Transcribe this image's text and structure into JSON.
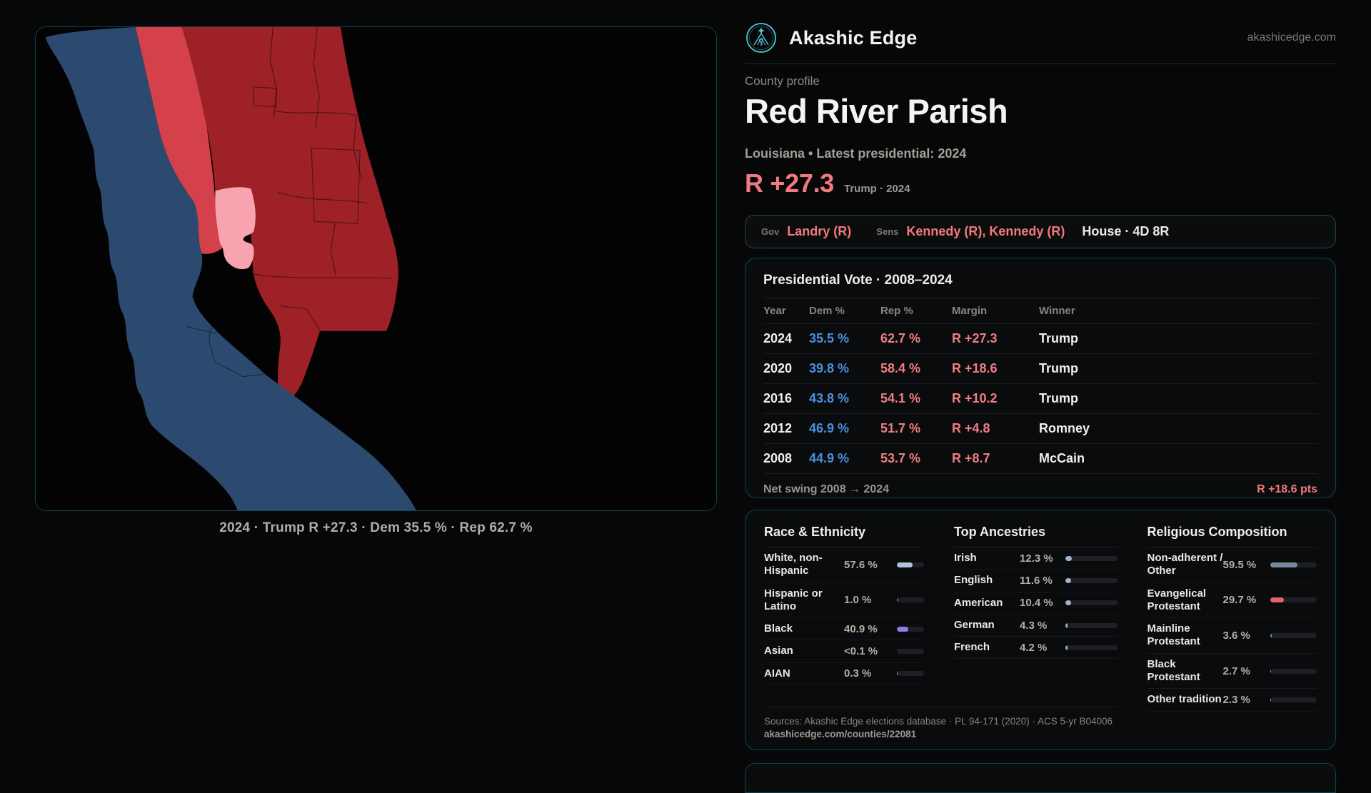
{
  "brand": {
    "name": "Akashic Edge",
    "url": "akashicedge.com",
    "accent": "#4fc8d8"
  },
  "profile": {
    "kicker": "County profile",
    "title": "Red River Parish",
    "subtitle": "Louisiana • Latest presidential: 2024",
    "margin_big": "R +27.3",
    "margin_context": "Trump · 2024"
  },
  "officials": {
    "gov_label": "Gov",
    "gov": "Landry (R)",
    "sens_label": "Sens",
    "sens": "Kennedy (R), Kennedy (R)",
    "house": "House · 4D 8R"
  },
  "map": {
    "caption": "2024 · Trump R +27.3 · Dem 35.5 % · Rep 62.7 %",
    "colors": {
      "dem": "#2c4a70",
      "rep_light": "#d4414b",
      "rep_dark": "#9e2127",
      "highlight": "#f8a3b0",
      "background": "#030304",
      "border_line": "#0d0708"
    }
  },
  "presidential": {
    "title": "Presidential Vote · 2008–2024",
    "columns": [
      "Year",
      "Dem %",
      "Rep %",
      "Margin",
      "Winner"
    ],
    "rows": [
      {
        "year": "2024",
        "dem": "35.5 %",
        "rep": "62.7 %",
        "margin": "R +27.3",
        "winner": "Trump"
      },
      {
        "year": "2020",
        "dem": "39.8 %",
        "rep": "58.4 %",
        "margin": "R +18.6",
        "winner": "Trump"
      },
      {
        "year": "2016",
        "dem": "43.8 %",
        "rep": "54.1 %",
        "margin": "R +10.2",
        "winner": "Trump"
      },
      {
        "year": "2012",
        "dem": "46.9 %",
        "rep": "51.7 %",
        "margin": "R +4.8",
        "winner": "Romney"
      },
      {
        "year": "2008",
        "dem": "44.9 %",
        "rep": "53.7 %",
        "margin": "R +8.7",
        "winner": "McCain"
      }
    ],
    "net_swing_label": "Net swing 2008 → 2024",
    "net_swing_value": "R +18.6 pts"
  },
  "race": {
    "title": "Race & Ethnicity",
    "rows": [
      {
        "label": "White, non-Hispanic",
        "value": "57.6 %",
        "pct": 57.6,
        "color": "#aec3da"
      },
      {
        "label": "Hispanic or Latino",
        "value": "1.0 %",
        "pct": 1.0,
        "color": "#aec3da"
      },
      {
        "label": "Black",
        "value": "40.9 %",
        "pct": 40.9,
        "color": "#8f7ee8"
      },
      {
        "label": "Asian",
        "value": "<0.1 %",
        "pct": 0.05,
        "color": "#aec3da"
      },
      {
        "label": "AIAN",
        "value": "0.3 %",
        "pct": 0.3,
        "color": "#aec3da"
      }
    ]
  },
  "ancestries": {
    "title": "Top Ancestries",
    "rows": [
      {
        "label": "Irish",
        "value": "12.3 %",
        "pct": 12.3,
        "color": "#9fb3c9"
      },
      {
        "label": "English",
        "value": "11.6 %",
        "pct": 11.6,
        "color": "#9fb3c9"
      },
      {
        "label": "American",
        "value": "10.4 %",
        "pct": 10.4,
        "color": "#9fb3c9"
      },
      {
        "label": "German",
        "value": "4.3 %",
        "pct": 4.3,
        "color": "#9fb3c9"
      },
      {
        "label": "French",
        "value": "4.2 %",
        "pct": 4.2,
        "color": "#9fb3c9"
      }
    ]
  },
  "religion": {
    "title": "Religious Composition",
    "rows": [
      {
        "label": "Non-adherent / Other",
        "value": "59.5 %",
        "pct": 59.5,
        "color": "#76879e"
      },
      {
        "label": "Evangelical Protestant",
        "value": "29.7 %",
        "pct": 29.7,
        "color": "#e2646a"
      },
      {
        "label": "Mainline Protestant",
        "value": "3.6 %",
        "pct": 3.6,
        "color": "#4d8be8"
      },
      {
        "label": "Black Protestant",
        "value": "2.7 %",
        "pct": 2.7,
        "color": "#8f7ee8"
      },
      {
        "label": "Other tradition",
        "value": "2.3 %",
        "pct": 2.3,
        "color": "#8b95a5"
      }
    ]
  },
  "sources": {
    "line1": "Sources: Akashic Edge elections database · PL 94-171 (2020) · ACS 5-yr B04006",
    "line2": "akashicedge.com/counties/22081"
  }
}
